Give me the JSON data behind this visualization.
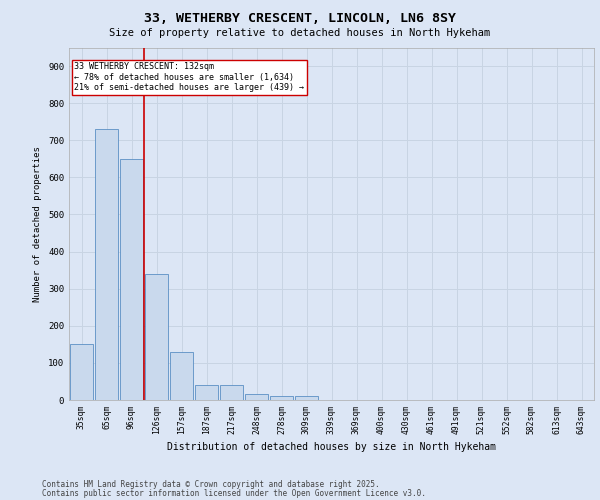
{
  "title_line1": "33, WETHERBY CRESCENT, LINCOLN, LN6 8SY",
  "title_line2": "Size of property relative to detached houses in North Hykeham",
  "xlabel": "Distribution of detached houses by size in North Hykeham",
  "ylabel": "Number of detached properties",
  "categories": [
    "35sqm",
    "65sqm",
    "96sqm",
    "126sqm",
    "157sqm",
    "187sqm",
    "217sqm",
    "248sqm",
    "278sqm",
    "309sqm",
    "339sqm",
    "369sqm",
    "400sqm",
    "430sqm",
    "461sqm",
    "491sqm",
    "521sqm",
    "552sqm",
    "582sqm",
    "613sqm",
    "643sqm"
  ],
  "values": [
    150,
    730,
    650,
    340,
    130,
    40,
    40,
    15,
    10,
    10,
    0,
    0,
    0,
    0,
    0,
    0,
    0,
    0,
    0,
    0,
    0
  ],
  "bar_color": "#c9d9ed",
  "bar_edge_color": "#5b8fc4",
  "grid_color": "#c8d4e3",
  "background_color": "#dce6f5",
  "plot_bg_color": "#dce6f5",
  "vline_color": "#cc0000",
  "vline_x": 2.5,
  "annotation_text": "33 WETHERBY CRESCENT: 132sqm\n← 78% of detached houses are smaller (1,634)\n21% of semi-detached houses are larger (439) →",
  "annotation_box_facecolor": "#ffffff",
  "annotation_box_edgecolor": "#cc0000",
  "footer_line1": "Contains HM Land Registry data © Crown copyright and database right 2025.",
  "footer_line2": "Contains public sector information licensed under the Open Government Licence v3.0.",
  "ylim": [
    0,
    950
  ],
  "yticks": [
    0,
    100,
    200,
    300,
    400,
    500,
    600,
    700,
    800,
    900
  ],
  "figsize": [
    6.0,
    5.0
  ],
  "dpi": 100
}
